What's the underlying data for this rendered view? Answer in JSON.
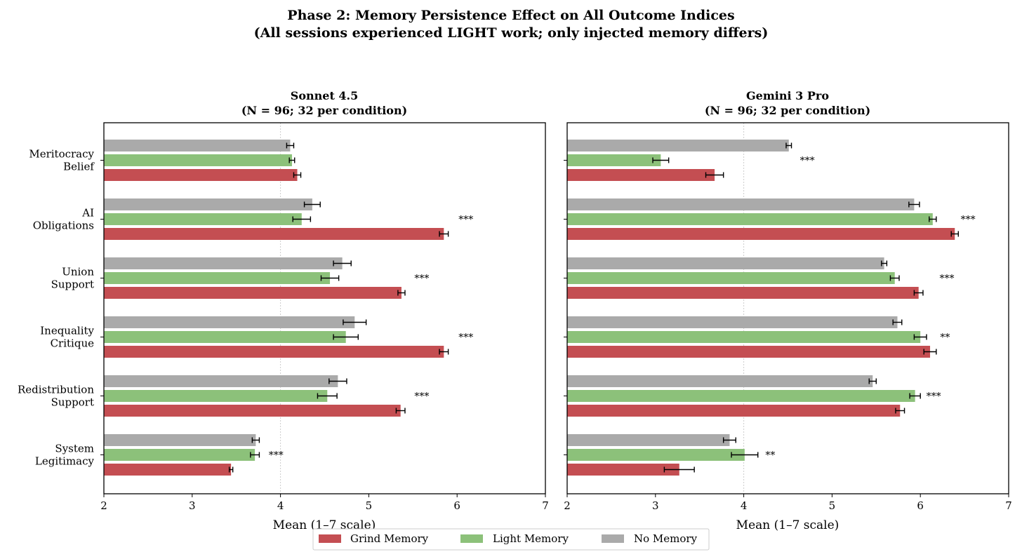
{
  "figure": {
    "title": "Phase 2: Memory Persistence Effect on All Outcome Indices",
    "subtitle": "(All sessions experienced LIGHT work; only injected memory differs)"
  },
  "colors": {
    "grind": "#c44e52",
    "light": "#8cc17a",
    "none": "#aaaaaa",
    "errorbar": "#000000",
    "gridline": "#cccccc"
  },
  "legend": {
    "placement": "bottom-center",
    "items": [
      {
        "label": "Grind Memory",
        "color": "#c44e52"
      },
      {
        "label": "Light Memory",
        "color": "#8cc17a"
      },
      {
        "label": "No Memory",
        "color": "#aaaaaa"
      }
    ]
  },
  "chart_data": [
    {
      "type": "bar",
      "orientation": "horizontal",
      "title": "Sonnet 4.5",
      "subtitle": "(N = 96; 32 per condition)",
      "xlabel": "Mean (1–7 scale)",
      "ylabel": "",
      "xlim": [
        2,
        7
      ],
      "xticks": [
        2,
        3,
        4,
        5,
        6,
        7
      ],
      "reference_line": 4,
      "categories": [
        "Meritocracy Belief",
        "AI Obligations",
        "Union Support",
        "Inequality Critique",
        "Redistribution Support",
        "System Legitimacy"
      ],
      "category_lines": [
        [
          "Meritocracy",
          "Belief"
        ],
        [
          "AI",
          "Obligations"
        ],
        [
          "Union",
          "Support"
        ],
        [
          "Inequality",
          "Critique"
        ],
        [
          "Redistribution",
          "Support"
        ],
        [
          "System",
          "Legitimacy"
        ]
      ],
      "series": [
        {
          "name": "No Memory",
          "key": "none",
          "values": [
            4.11,
            4.36,
            4.7,
            4.84,
            4.65,
            3.72
          ],
          "errors": [
            0.04,
            0.09,
            0.1,
            0.13,
            0.1,
            0.04
          ]
        },
        {
          "name": "Light Memory",
          "key": "light",
          "values": [
            4.13,
            4.24,
            4.56,
            4.74,
            4.53,
            3.71
          ],
          "errors": [
            0.03,
            0.1,
            0.1,
            0.14,
            0.11,
            0.05
          ]
        },
        {
          "name": "Grind Memory",
          "key": "grind",
          "values": [
            4.19,
            5.85,
            5.37,
            5.85,
            5.36,
            3.44
          ],
          "errors": [
            0.04,
            0.05,
            0.04,
            0.05,
            0.05,
            0.02
          ]
        }
      ],
      "significance": [
        "",
        "***",
        "***",
        "***",
        "***",
        "***"
      ],
      "significance_x": [
        null,
        6.1,
        5.6,
        6.1,
        5.6,
        3.95
      ]
    },
    {
      "type": "bar",
      "orientation": "horizontal",
      "title": "Gemini 3 Pro",
      "subtitle": "(N = 96; 32 per condition)",
      "xlabel": "Mean (1–7 scale)",
      "ylabel": "",
      "xlim": [
        2,
        7
      ],
      "xticks": [
        2,
        3,
        4,
        5,
        6,
        7
      ],
      "reference_line": 4,
      "categories": [
        "Meritocracy Belief",
        "AI Obligations",
        "Union Support",
        "Inequality Critique",
        "Redistribution Support",
        "System Legitimacy"
      ],
      "series": [
        {
          "name": "No Memory",
          "key": "none",
          "values": [
            4.51,
            5.93,
            5.59,
            5.74,
            5.46,
            3.84
          ],
          "errors": [
            0.03,
            0.06,
            0.03,
            0.05,
            0.04,
            0.07
          ]
        },
        {
          "name": "Light Memory",
          "key": "light",
          "values": [
            3.06,
            6.14,
            5.71,
            6.0,
            5.94,
            4.01
          ],
          "errors": [
            0.09,
            0.04,
            0.05,
            0.07,
            0.06,
            0.15
          ]
        },
        {
          "name": "Grind Memory",
          "key": "grind",
          "values": [
            3.67,
            6.39,
            5.98,
            6.11,
            5.77,
            3.27
          ],
          "errors": [
            0.1,
            0.04,
            0.05,
            0.07,
            0.05,
            0.17
          ]
        }
      ],
      "significance": [
        "***",
        "***",
        "***",
        "**",
        "***",
        "**"
      ],
      "significance_x": [
        4.72,
        6.54,
        6.3,
        6.28,
        6.15,
        4.3
      ]
    }
  ]
}
